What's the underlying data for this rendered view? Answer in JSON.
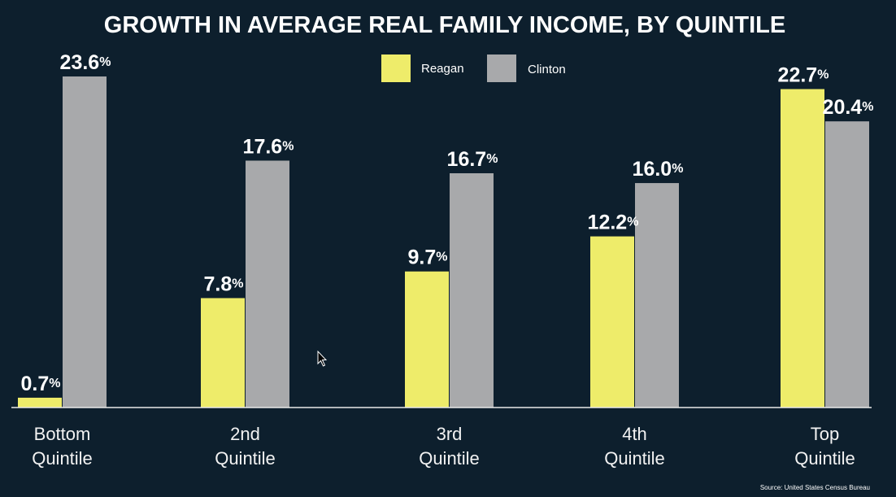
{
  "chart_data": {
    "type": "bar",
    "title": "GROWTH IN AVERAGE REAL FAMILY INCOME, BY QUINTILE",
    "categories": [
      [
        "Bottom",
        "Quintile"
      ],
      [
        "2nd",
        "Quintile"
      ],
      [
        "3rd",
        "Quintile"
      ],
      [
        "4th",
        "Quintile"
      ],
      [
        "Top",
        "Quintile"
      ]
    ],
    "series": [
      {
        "name": "Reagan",
        "color": "#eeec6a",
        "values": [
          0.7,
          7.8,
          9.7,
          12.2,
          22.7
        ],
        "labels": [
          "0.7",
          "7.8",
          "9.7",
          "12.2",
          "22.7"
        ]
      },
      {
        "name": "Clinton",
        "color": "#a8a9ab",
        "values": [
          23.6,
          17.6,
          16.7,
          16.0,
          20.4
        ],
        "labels": [
          "23.6",
          "17.6",
          "16.7",
          "16.0",
          "20.4"
        ]
      }
    ],
    "value_suffix": "%",
    "ylim": [
      0,
      25
    ],
    "grid": false,
    "legend_position": "top-center",
    "source": "Source: United States Census Bureau"
  }
}
